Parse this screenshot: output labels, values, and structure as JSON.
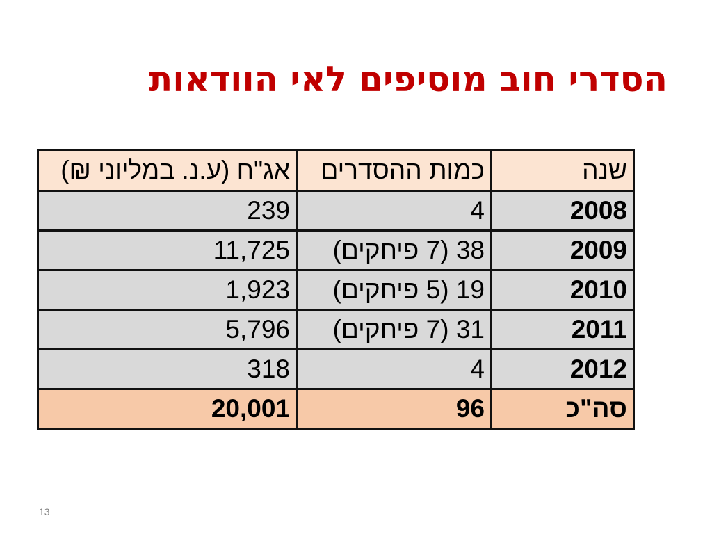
{
  "slide": {
    "title": "הסדרי חוב מוסיפים לאי הוודאות",
    "number": "13"
  },
  "table": {
    "headers": {
      "year": "שנה",
      "count": "כמות ההסדרים",
      "amount": "אג\"ח (ע.נ. במליוני ₪)"
    },
    "rows": [
      {
        "year": "2008",
        "count": "4",
        "amount": "239"
      },
      {
        "year": "2009",
        "count": "38 (7 פיחקים)",
        "amount": "11,725"
      },
      {
        "year": "2010",
        "count": "19 (5 פיחקים)",
        "amount": "1,923"
      },
      {
        "year": "2011",
        "count": "31 (7 פיחקים)",
        "amount": "5,796"
      },
      {
        "year": "2012",
        "count": "4",
        "amount": "318"
      }
    ],
    "total": {
      "label": "סה\"כ",
      "count": "96",
      "amount": "20,001"
    }
  },
  "colors": {
    "title": "#c00000",
    "header_bg": "#fce4d2",
    "row_bg": "#d9d9d9",
    "total_bg": "#f7c9a8"
  }
}
